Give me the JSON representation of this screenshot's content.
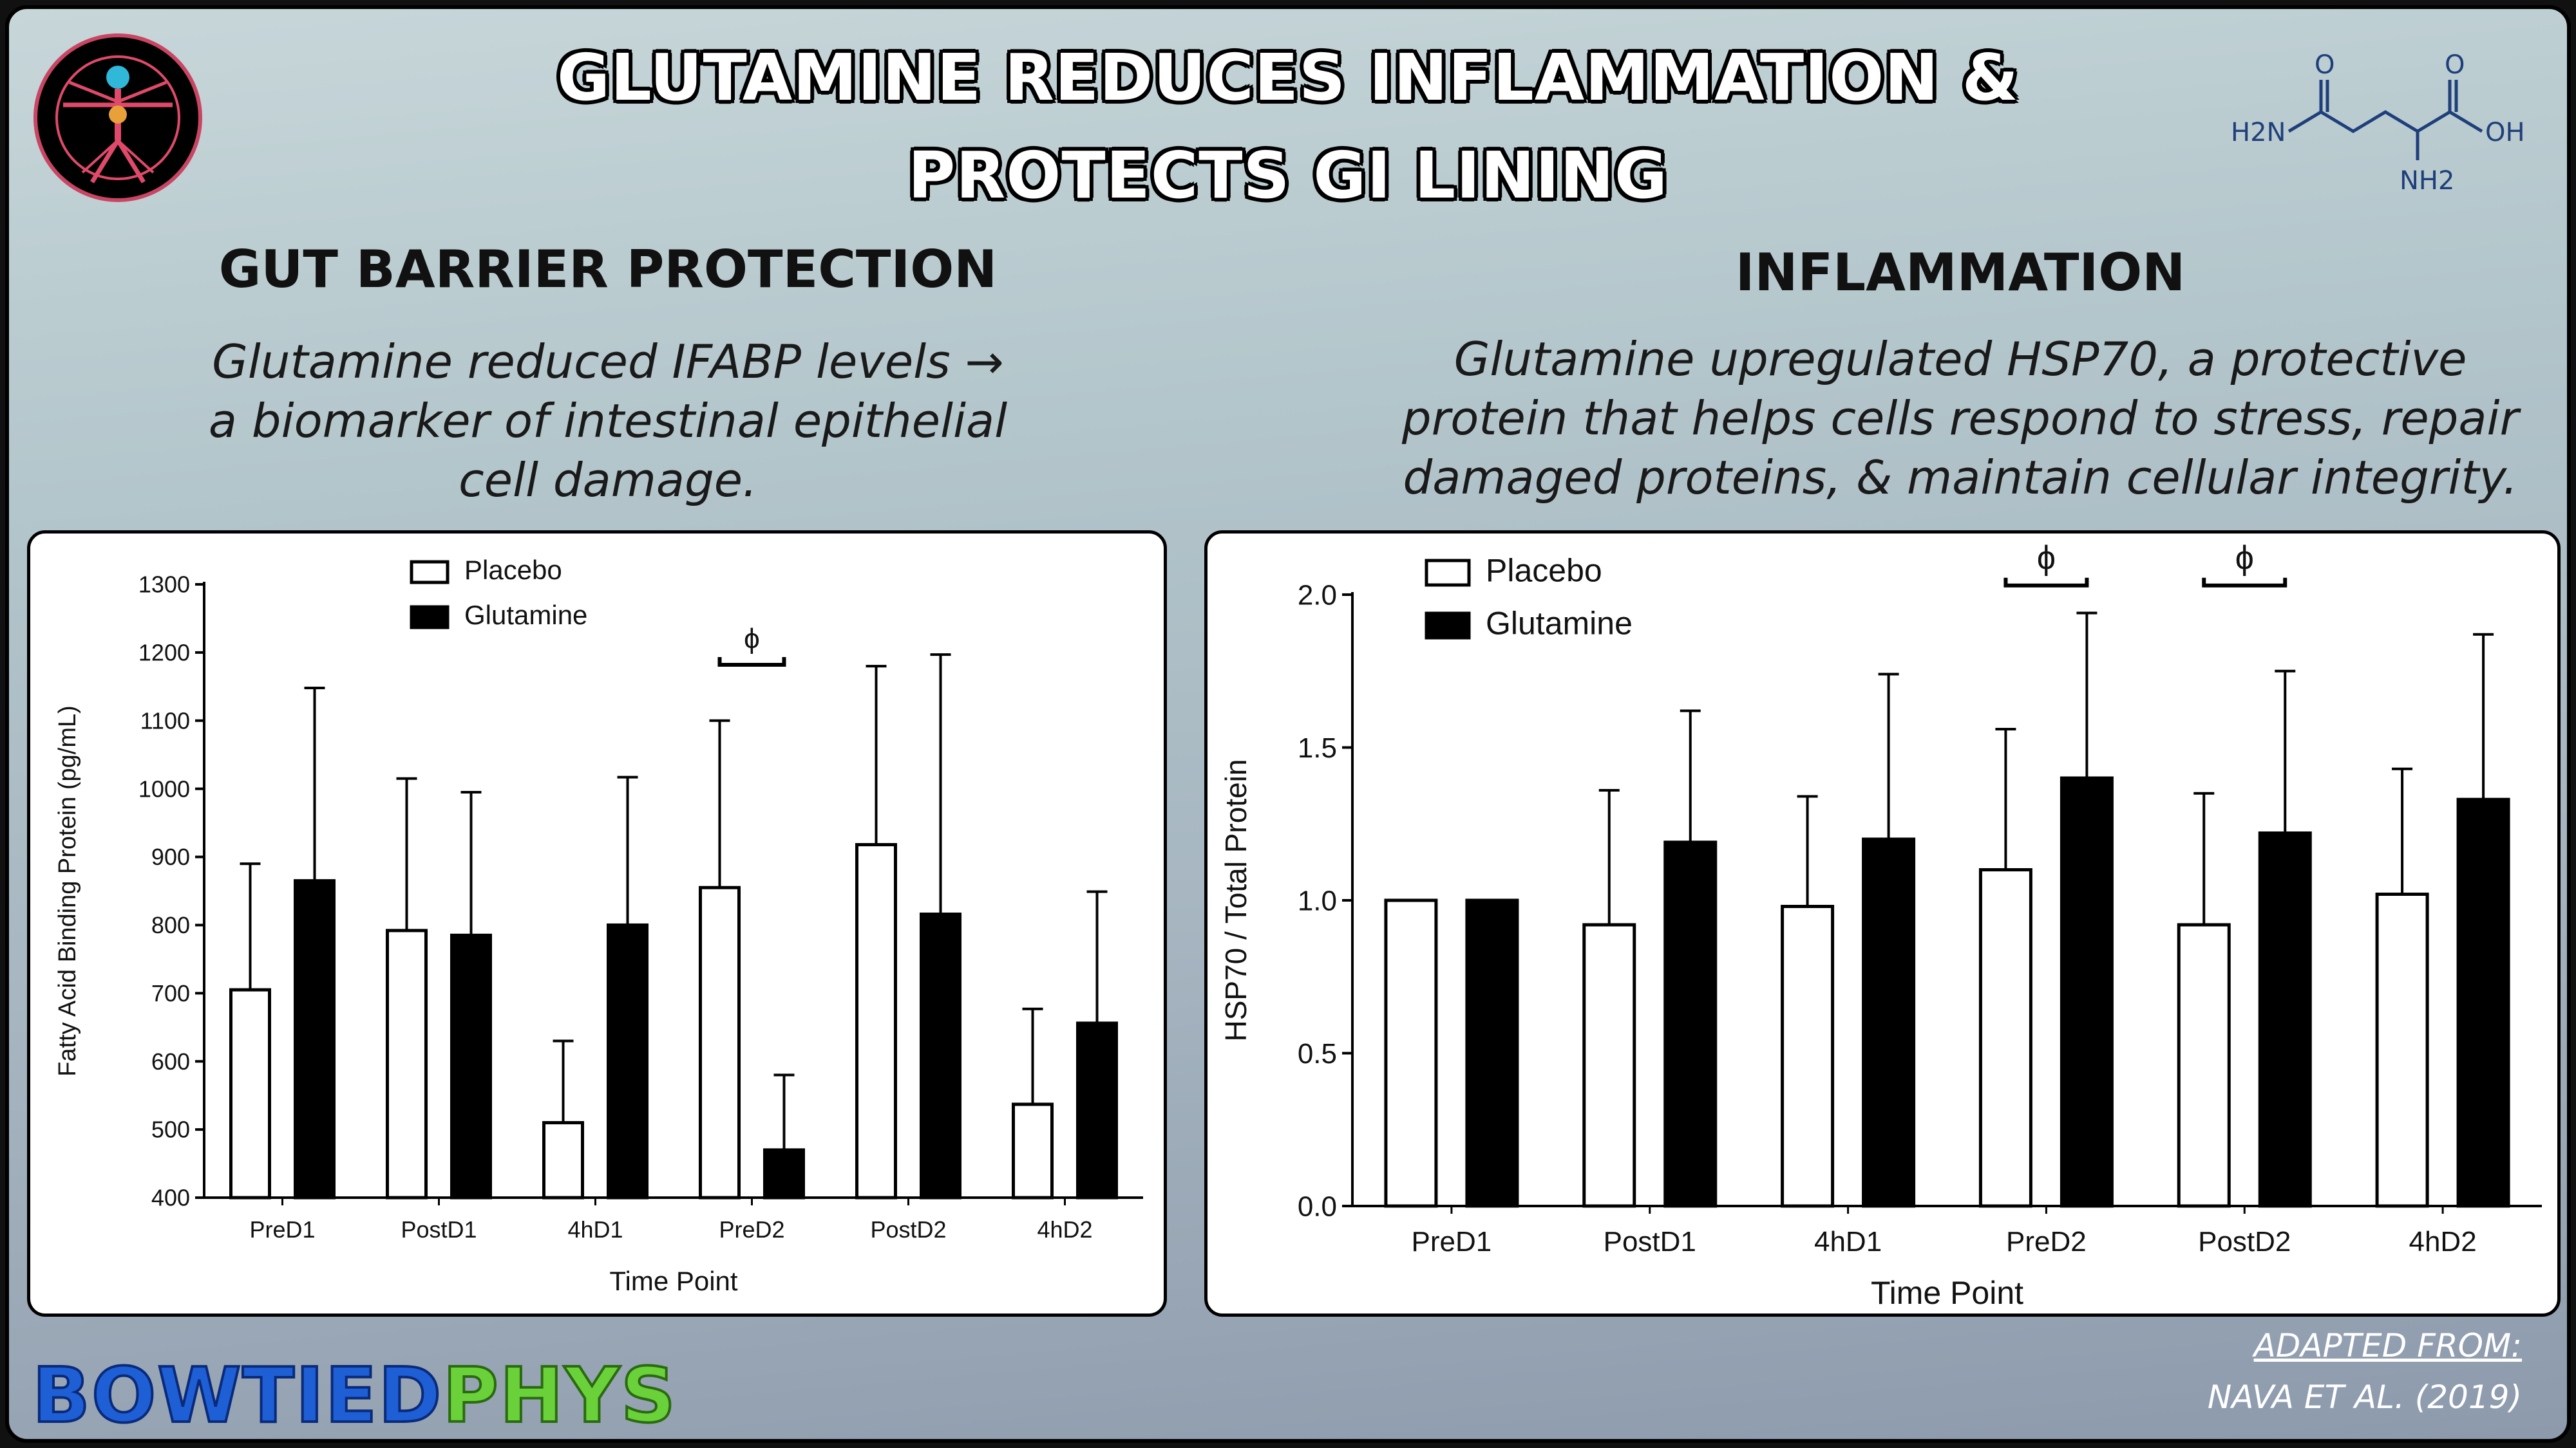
{
  "header": {
    "title_line1": "GLUTAMINE REDUCES INFLAMMATION &",
    "title_line2": "PROTECTS GI LINING"
  },
  "molecule": {
    "atom_o1": "O",
    "atom_o2": "O",
    "atom_h2n": "H2N",
    "atom_oh": "OH",
    "atom_nh2": "NH2"
  },
  "left_section": {
    "title": "GUT BARRIER PROTECTION",
    "desc_line1": "Glutamine reduced IFABP levels →",
    "desc_line2": "a biomarker of intestinal epithelial",
    "desc_line3": "cell damage."
  },
  "right_section": {
    "title": "INFLAMMATION",
    "desc_line1": "Glutamine upregulated HSP70, a protective",
    "desc_line2": "protein that helps cells respond to stress, repair",
    "desc_line3": "damaged proteins, & maintain cellular integrity."
  },
  "brand": {
    "part1": "BOWTIED",
    "part2": "PHYS"
  },
  "credit": {
    "line1": "ADAPTED FROM:",
    "line2": "NAVA ET AL. (2019)"
  },
  "colors": {
    "placebo": "#ffffff",
    "glutamine": "#000000",
    "brand_blue": "#1e5fd6",
    "brand_green": "#6bd13a",
    "logo_ring": "#c94563"
  },
  "chart_data": [
    {
      "type": "bar",
      "xlabel": "Time Point",
      "ylabel": "Fatty Acid Binding Protein (pg/mL)",
      "categories": [
        "PreD1",
        "PostD1",
        "4hD1",
        "PreD2",
        "PostD2",
        "4hD2"
      ],
      "ylim": [
        400,
        1300
      ],
      "yticks": [
        400,
        500,
        600,
        700,
        800,
        900,
        1000,
        1100,
        1200,
        1300
      ],
      "legend_position": "top-left",
      "series": [
        {
          "name": "Placebo",
          "values": [
            705,
            792,
            510,
            855,
            918,
            537
          ],
          "error_upper": [
            890,
            1015,
            630,
            1100,
            1180,
            677
          ]
        },
        {
          "name": "Glutamine",
          "values": [
            865,
            785,
            800,
            470,
            816,
            656
          ],
          "error_upper": [
            1148,
            995,
            1017,
            580,
            1197,
            849
          ]
        }
      ],
      "annotations": [
        {
          "category": "PreD2",
          "symbol": "ϕ",
          "value": 1182
        }
      ]
    },
    {
      "type": "bar",
      "xlabel": "Time Point",
      "ylabel": "HSP70 / Total Protein",
      "categories": [
        "PreD1",
        "PostD1",
        "4hD1",
        "PreD2",
        "PostD2",
        "4hD2"
      ],
      "ylim": [
        0.0,
        2.0
      ],
      "yticks": [
        "0.0",
        "0.5",
        "1.0",
        "1.5",
        "2.0"
      ],
      "legend_position": "top-left",
      "series": [
        {
          "name": "Placebo",
          "values": [
            1.0,
            0.92,
            0.98,
            1.1,
            0.92,
            1.02
          ],
          "error_upper": [
            1.0,
            1.36,
            1.34,
            1.56,
            1.35,
            1.43
          ]
        },
        {
          "name": "Glutamine",
          "values": [
            1.0,
            1.19,
            1.2,
            1.4,
            1.22,
            1.33
          ],
          "error_upper": [
            1.0,
            1.62,
            1.74,
            1.94,
            1.75,
            1.87
          ]
        }
      ],
      "annotations": [
        {
          "category": "PreD2",
          "symbol": "ϕ",
          "value": 2.03
        },
        {
          "category": "PostD2",
          "symbol": "ϕ",
          "value": 2.03
        }
      ]
    }
  ]
}
